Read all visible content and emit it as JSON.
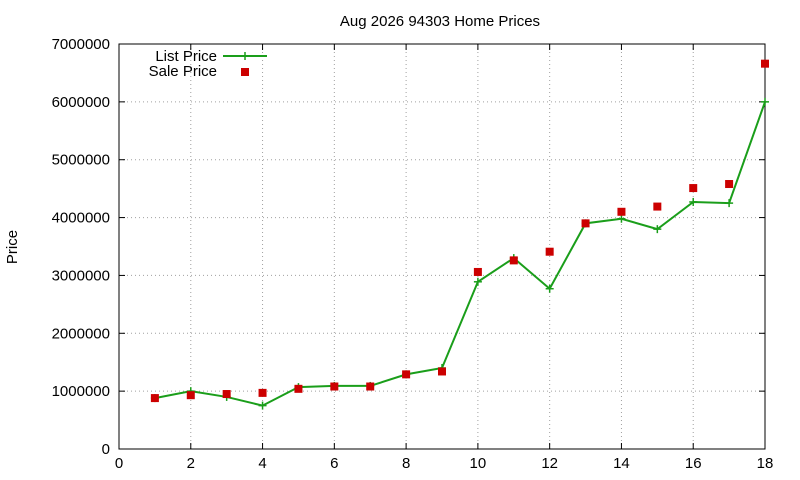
{
  "chart_data": {
    "type": "line",
    "title": "Aug 2026 94303 Home Prices",
    "xlabel": "",
    "ylabel": "Price",
    "xlim": [
      0,
      18
    ],
    "ylim": [
      0,
      7000000
    ],
    "x_ticks": [
      0,
      2,
      4,
      6,
      8,
      10,
      12,
      14,
      16,
      18
    ],
    "y_ticks": [
      0,
      1000000,
      2000000,
      3000000,
      4000000,
      5000000,
      6000000,
      7000000
    ],
    "x_tick_labels": [
      "0",
      "2",
      "4",
      "6",
      "8",
      "10",
      "12",
      "14",
      "16",
      "18"
    ],
    "y_tick_labels": [
      "0",
      "1000000",
      "2000000",
      "3000000",
      "4000000",
      "5000000",
      "6000000",
      "7000000"
    ],
    "grid": true,
    "legend_position": "top-left",
    "series": [
      {
        "name": "List Price",
        "style": "line-plus",
        "color": "#1a9e1a",
        "x": [
          1,
          2,
          3,
          4,
          5,
          6,
          7,
          8,
          9,
          10,
          11,
          12,
          13,
          14,
          15,
          16,
          17,
          18
        ],
        "y": [
          880000,
          1000000,
          900000,
          750000,
          1070000,
          1090000,
          1090000,
          1290000,
          1400000,
          2890000,
          3300000,
          2770000,
          3900000,
          3980000,
          3800000,
          4270000,
          4250000,
          6000000
        ]
      },
      {
        "name": "Sale Price",
        "style": "square",
        "color": "#cc0000",
        "x": [
          1,
          2,
          3,
          4,
          5,
          6,
          7,
          8,
          9,
          10,
          11,
          12,
          13,
          14,
          15,
          16,
          17,
          18
        ],
        "y": [
          880000,
          930000,
          950000,
          970000,
          1040000,
          1080000,
          1080000,
          1290000,
          1340000,
          3060000,
          3260000,
          3410000,
          3900000,
          4100000,
          4190000,
          4510000,
          4580000,
          6660000
        ]
      }
    ]
  }
}
